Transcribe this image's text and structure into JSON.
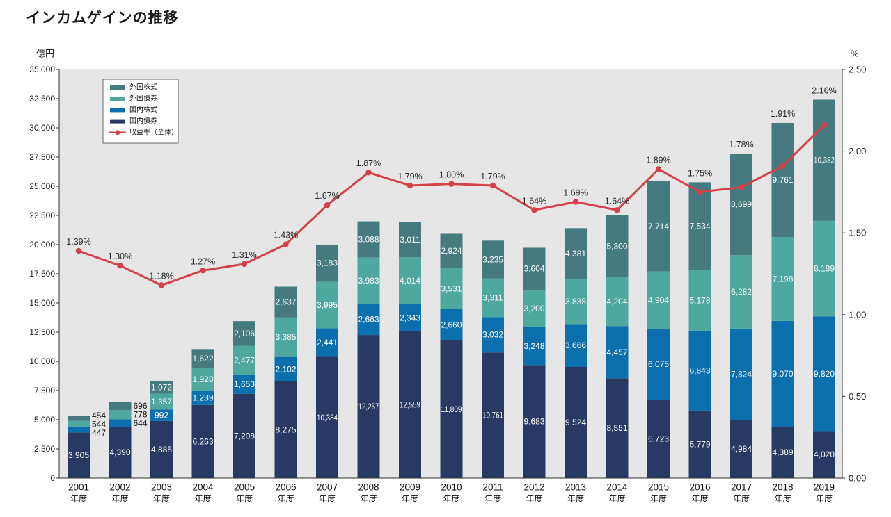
{
  "chart_data": {
    "type": "bar",
    "stacked": true,
    "title": "インカムゲインの推移",
    "categories": [
      "2001",
      "2002",
      "2003",
      "2004",
      "2005",
      "2006",
      "2007",
      "2008",
      "2009",
      "2010",
      "2011",
      "2012",
      "2013",
      "2014",
      "2015",
      "2016",
      "2017",
      "2018",
      "2019"
    ],
    "category_suffix": "年度",
    "ylabel": "億円",
    "ylim": [
      0,
      35000
    ],
    "yticks": [
      0,
      2500,
      5000,
      7500,
      10000,
      12500,
      15000,
      17500,
      20000,
      22500,
      25000,
      27500,
      30000,
      32500,
      35000
    ],
    "ytick_labels": [
      "0",
      "2,500",
      "5,000",
      "7,500",
      "10,000",
      "12,500",
      "15,000",
      "17,500",
      "20,000",
      "22,500",
      "25,000",
      "27,500",
      "30,000",
      "32,500",
      "35,000"
    ],
    "y2label": "%",
    "y2lim": [
      0,
      2.5
    ],
    "y2ticks": [
      0,
      0.5,
      1.0,
      1.5,
      2.0,
      2.5
    ],
    "y2tick_labels": [
      "0.00",
      "0.50",
      "1.00",
      "1.50",
      "2.00",
      "2.50"
    ],
    "legend_position": "top-left",
    "series": [
      {
        "name": "国内債券",
        "color": "#283a63",
        "values": [
          3905,
          4390,
          4885,
          6263,
          7208,
          8275,
          10384,
          12257,
          12559,
          11809,
          10761,
          9683,
          9524,
          8551,
          6723,
          5779,
          4984,
          4389,
          4020
        ],
        "labels": [
          "3,905",
          "4,390",
          "4,885",
          "6,263",
          "7,208",
          "8,275",
          "10,384",
          "12,257",
          "12,559",
          "11,809",
          "10,761",
          "9,683",
          "9,524",
          "8,551",
          "6,723",
          "5,779",
          "4,984",
          "4,389",
          "4,020"
        ]
      },
      {
        "name": "国内株式",
        "color": "#0b6fad",
        "values": [
          447,
          644,
          992,
          1239,
          1653,
          2102,
          2441,
          2663,
          2343,
          2660,
          3032,
          3248,
          3666,
          4457,
          6075,
          6843,
          7824,
          9070,
          9820
        ],
        "labels": [
          "447",
          "644",
          "992",
          "1,239",
          "1,653",
          "2,102",
          "2,441",
          "2,663",
          "2,343",
          "2,660",
          "3,032",
          "3,248",
          "3,666",
          "4,457",
          "6,075",
          "6,843",
          "7,824",
          "9,070",
          "9,820"
        ]
      },
      {
        "name": "外国債券",
        "color": "#4ea89d",
        "values": [
          544,
          778,
          1357,
          1928,
          2477,
          3385,
          3995,
          3983,
          4014,
          3531,
          3311,
          3200,
          3838,
          4204,
          4904,
          5178,
          6282,
          7198,
          8189
        ],
        "labels": [
          "544",
          "778",
          "1,357",
          "1,928",
          "2,477",
          "3,385",
          "3,995",
          "3,983",
          "4,014",
          "3,531",
          "3,311",
          "3,200",
          "3,838",
          "4,204",
          "4,904",
          "5,178",
          "6,282",
          "7,198",
          "8,189"
        ]
      },
      {
        "name": "外国株式",
        "color": "#457a7e",
        "values": [
          454,
          696,
          1072,
          1622,
          2106,
          2637,
          3183,
          3088,
          3011,
          2924,
          3235,
          3604,
          4381,
          5300,
          7714,
          7534,
          8699,
          9761,
          10382
        ],
        "labels": [
          "454",
          "696",
          "1,072",
          "1,622",
          "2,106",
          "2,637",
          "3,183",
          "3,088",
          "3,011",
          "2,924",
          "3,235",
          "3,604",
          "4,381",
          "5,300",
          "7,714",
          "7,534",
          "8,699",
          "9,761",
          "10,382"
        ]
      }
    ],
    "y2_series": {
      "name": "収益率（全体）",
      "color": "#d5414b",
      "values": [
        1.39,
        1.3,
        1.18,
        1.27,
        1.31,
        1.43,
        1.67,
        1.87,
        1.79,
        1.8,
        1.79,
        1.64,
        1.69,
        1.64,
        1.89,
        1.75,
        1.78,
        1.91,
        2.16
      ],
      "labels": [
        "1.39%",
        "1.30%",
        "1.18%",
        "1.27%",
        "1.31%",
        "1.43%",
        "1.67%",
        "1.87%",
        "1.79%",
        "1.80%",
        "1.79%",
        "1.64%",
        "1.69%",
        "1.64%",
        "1.89%",
        "1.75%",
        "1.78%",
        "1.91%",
        "2.16%"
      ]
    }
  }
}
